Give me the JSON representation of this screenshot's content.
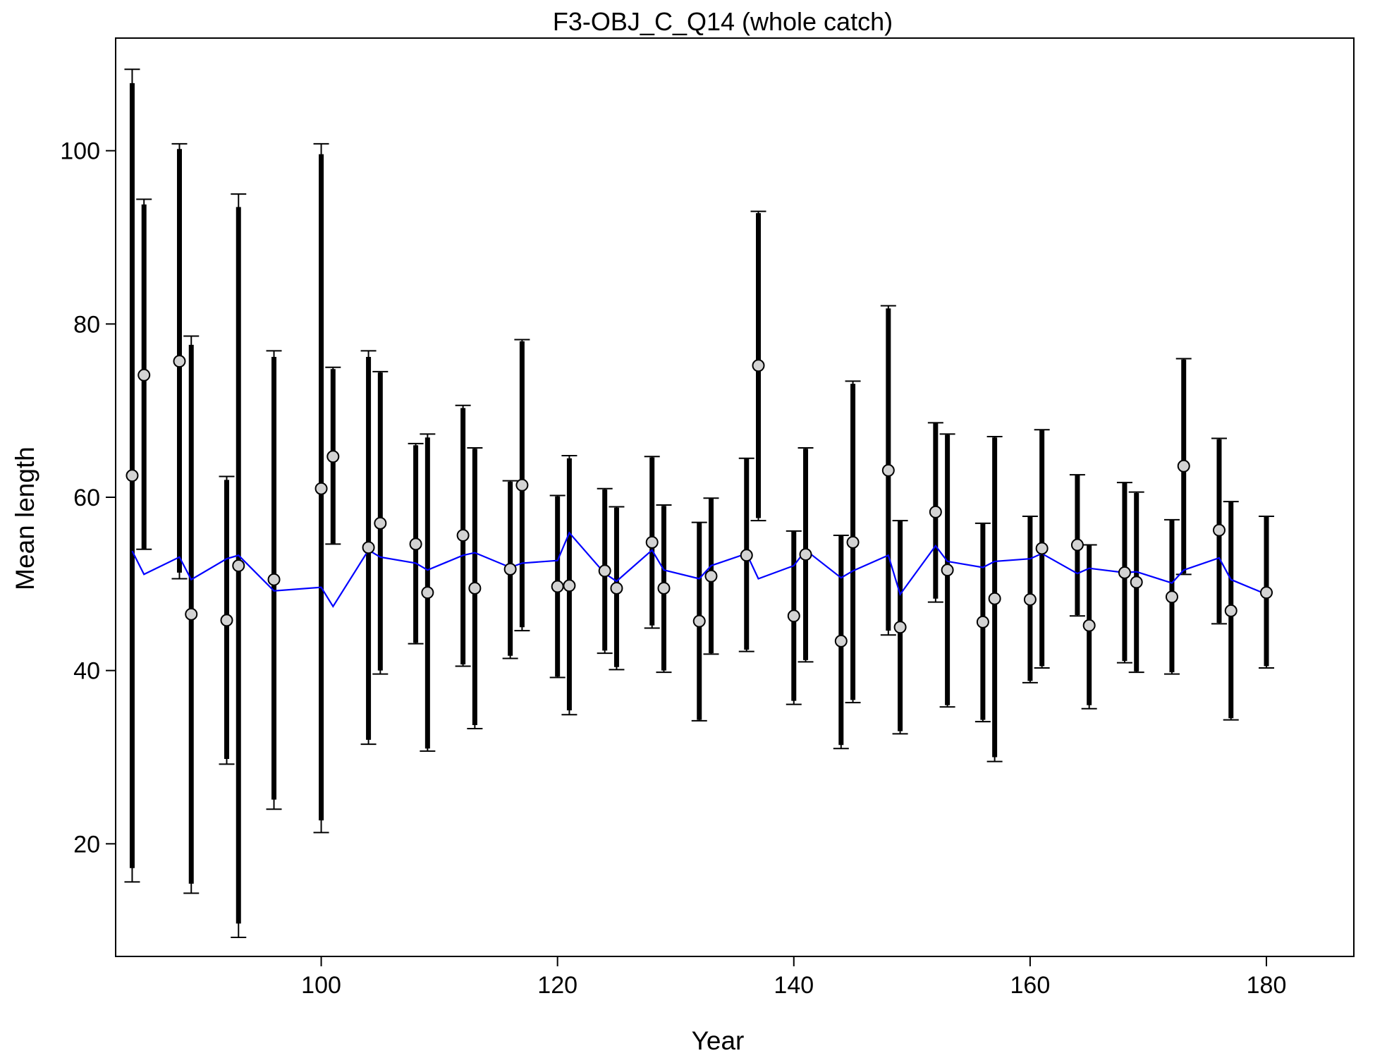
{
  "chart_data": {
    "type": "line",
    "title": "F3-OBJ_C_Q14 (whole catch)",
    "xlabel": "Year",
    "ylabel": "Mean length",
    "xlim": [
      82.6,
      187.4
    ],
    "ylim": [
      7.0,
      113.0
    ],
    "x_ticks": [
      100,
      120,
      140,
      160,
      180
    ],
    "y_ticks": [
      20,
      40,
      60,
      80,
      100
    ],
    "grid": false,
    "legend": "none",
    "colors": {
      "observed_fill": "#d3d3d3",
      "expected_line": "#0000ff",
      "error_bars": "#000000"
    },
    "series": [
      {
        "x": [
          84,
          85,
          88,
          89,
          92,
          93,
          96,
          100,
          101,
          104,
          105,
          108,
          109,
          112,
          113,
          116,
          117,
          120,
          121,
          124,
          125,
          128,
          129,
          132,
          133,
          136,
          137,
          140,
          141,
          144,
          145,
          148,
          149,
          152,
          153,
          156,
          157,
          160,
          161,
          164,
          165,
          168,
          169,
          172,
          173,
          176,
          177,
          180
        ],
        "observed": [
          62.5,
          74.1,
          75.7,
          46.5,
          45.8,
          52.1,
          50.5,
          61.0,
          64.7,
          54.2,
          57.0,
          54.6,
          49.0,
          55.6,
          49.5,
          51.7,
          61.4,
          49.7,
          49.8,
          51.5,
          49.5,
          54.8,
          49.5,
          45.7,
          50.9,
          53.3,
          75.2,
          46.3,
          53.4,
          43.4,
          54.8,
          63.1,
          45.0,
          58.3,
          51.6,
          45.6,
          48.3,
          48.2,
          54.1,
          54.5,
          45.2,
          51.3,
          50.2,
          48.5,
          63.6,
          56.2,
          46.9,
          49.0
        ],
        "expected": [
          53.8,
          51.1,
          53.1,
          50.5,
          52.9,
          53.3,
          49.2,
          49.6,
          47.4,
          53.9,
          53.1,
          52.4,
          51.6,
          53.3,
          53.6,
          51.9,
          52.4,
          52.7,
          55.9,
          51.2,
          50.3,
          53.9,
          51.6,
          50.6,
          52.1,
          53.5,
          50.6,
          52.1,
          53.9,
          50.7,
          51.5,
          53.3,
          48.8,
          54.4,
          52.6,
          51.9,
          52.6,
          52.9,
          53.5,
          51.2,
          51.8,
          51.3,
          51.4,
          50.1,
          51.6,
          53.0,
          50.5,
          48.8
        ],
        "inner_low": [
          17.2,
          54.0,
          51.3,
          15.4,
          29.8,
          10.8,
          25.1,
          22.7,
          54.6,
          32.0,
          40.0,
          43.2,
          31.0,
          40.7,
          33.7,
          41.7,
          45.0,
          39.3,
          35.4,
          42.3,
          40.4,
          45.2,
          40.0,
          34.3,
          42.0,
          42.4,
          57.6,
          36.5,
          41.2,
          31.4,
          36.6,
          44.6,
          33.0,
          48.3,
          36.0,
          34.3,
          30.0,
          38.8,
          40.5,
          46.4,
          36.0,
          41.1,
          39.9,
          39.8,
          51.2,
          45.5,
          34.5,
          40.5
        ],
        "inner_high": [
          107.8,
          93.8,
          100.2,
          77.6,
          62.0,
          93.5,
          76.2,
          99.6,
          74.8,
          76.2,
          74.4,
          66.0,
          66.9,
          70.3,
          65.6,
          61.8,
          78.0,
          60.1,
          64.5,
          60.9,
          58.8,
          64.6,
          59.0,
          57.1,
          59.9,
          64.5,
          92.8,
          56.1,
          65.6,
          55.6,
          73.1,
          81.8,
          57.3,
          68.6,
          67.2,
          57.0,
          66.9,
          57.8,
          67.8,
          62.6,
          54.5,
          61.7,
          60.5,
          57.4,
          75.9,
          66.7,
          59.5,
          57.8
        ],
        "outer_low": [
          15.6,
          54.0,
          50.6,
          14.3,
          29.2,
          9.2,
          24.0,
          21.3,
          54.6,
          31.5,
          39.6,
          43.1,
          30.7,
          40.5,
          33.3,
          41.4,
          44.6,
          39.2,
          34.9,
          42.0,
          40.1,
          44.9,
          39.8,
          34.2,
          41.9,
          42.2,
          57.3,
          36.1,
          41.0,
          31.0,
          36.3,
          44.1,
          32.7,
          47.9,
          35.8,
          34.1,
          29.5,
          38.6,
          40.3,
          46.3,
          35.6,
          40.9,
          39.8,
          39.6,
          51.1,
          45.4,
          34.3,
          40.3
        ],
        "outer_high": [
          109.4,
          94.4,
          100.8,
          78.6,
          62.4,
          95.0,
          76.9,
          100.8,
          75.0,
          76.9,
          74.5,
          66.2,
          67.3,
          70.6,
          65.7,
          61.9,
          78.2,
          60.2,
          64.8,
          61.0,
          58.9,
          64.7,
          59.1,
          57.1,
          59.9,
          64.5,
          93.0,
          56.1,
          65.7,
          55.6,
          73.4,
          82.1,
          57.3,
          68.6,
          67.3,
          57.0,
          67.0,
          57.8,
          67.8,
          62.6,
          54.5,
          61.7,
          60.6,
          57.4,
          76.0,
          66.8,
          59.5,
          57.8
        ]
      }
    ]
  }
}
